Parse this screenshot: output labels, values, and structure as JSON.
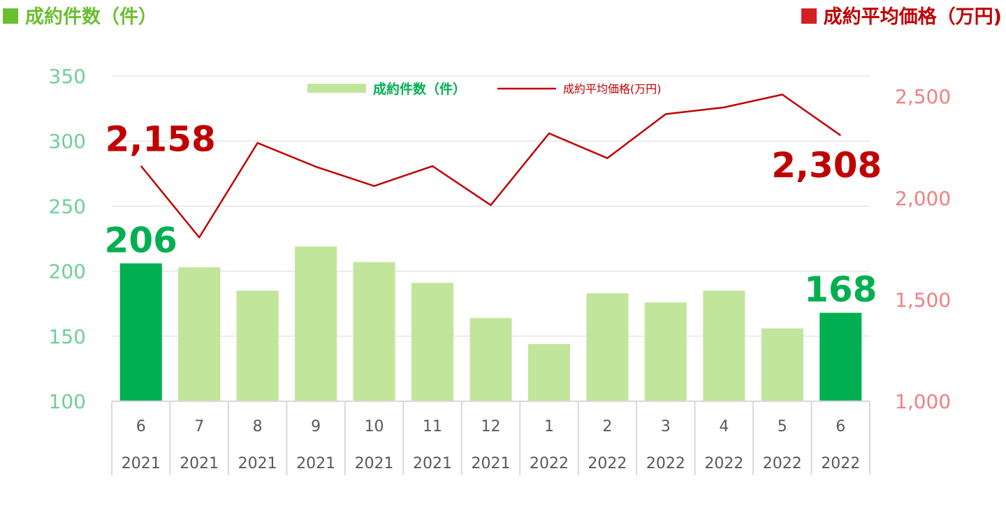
{
  "header": {
    "left_title": "成約件数（件）",
    "right_title": "成約平均価格（万円)"
  },
  "chart_data": {
    "type": "bar+line",
    "categories": [
      {
        "month": "6",
        "year": "2021"
      },
      {
        "month": "7",
        "year": "2021"
      },
      {
        "month": "8",
        "year": "2021"
      },
      {
        "month": "9",
        "year": "2021"
      },
      {
        "month": "10",
        "year": "2021"
      },
      {
        "month": "11",
        "year": "2021"
      },
      {
        "month": "12",
        "year": "2021"
      },
      {
        "month": "1",
        "year": "2022"
      },
      {
        "month": "2",
        "year": "2022"
      },
      {
        "month": "3",
        "year": "2022"
      },
      {
        "month": "4",
        "year": "2022"
      },
      {
        "month": "5",
        "year": "2022"
      },
      {
        "month": "6",
        "year": "2022"
      }
    ],
    "bar_series": {
      "name": "成約件数（件）",
      "values": [
        206,
        203,
        185,
        219,
        207,
        191,
        164,
        144,
        183,
        176,
        185,
        156,
        168
      ],
      "color": "#c2e59c",
      "highlight_color": "#00b050",
      "highlight_indices": [
        0,
        12
      ]
    },
    "line_series": {
      "name": "成約平均価格(万円)",
      "values": [
        2158,
        1806,
        2271,
        2154,
        2059,
        2157,
        1965,
        2318,
        2196,
        2413,
        2446,
        2509,
        2308
      ],
      "color": "#c00000"
    },
    "left_axis": {
      "ylim": [
        100,
        350
      ],
      "ticks": [
        "100",
        "150",
        "200",
        "250",
        "300",
        "350"
      ],
      "color": "#6fcf97"
    },
    "right_axis": {
      "ylim": [
        1000,
        2600
      ],
      "ticks": [
        "1,000",
        "1,500",
        "2,000",
        "2,500"
      ],
      "tick_values": [
        1000,
        1500,
        2000,
        2500
      ],
      "color": "#f08080"
    },
    "annotations": {
      "bar_first": "206",
      "bar_last": "168",
      "line_first": "2,158",
      "line_last": "2,308"
    },
    "legend": {
      "bar_label": "成約件数（件）",
      "line_label": "成約平均価格(万円)",
      "placement": "top-center"
    },
    "grid": true
  }
}
